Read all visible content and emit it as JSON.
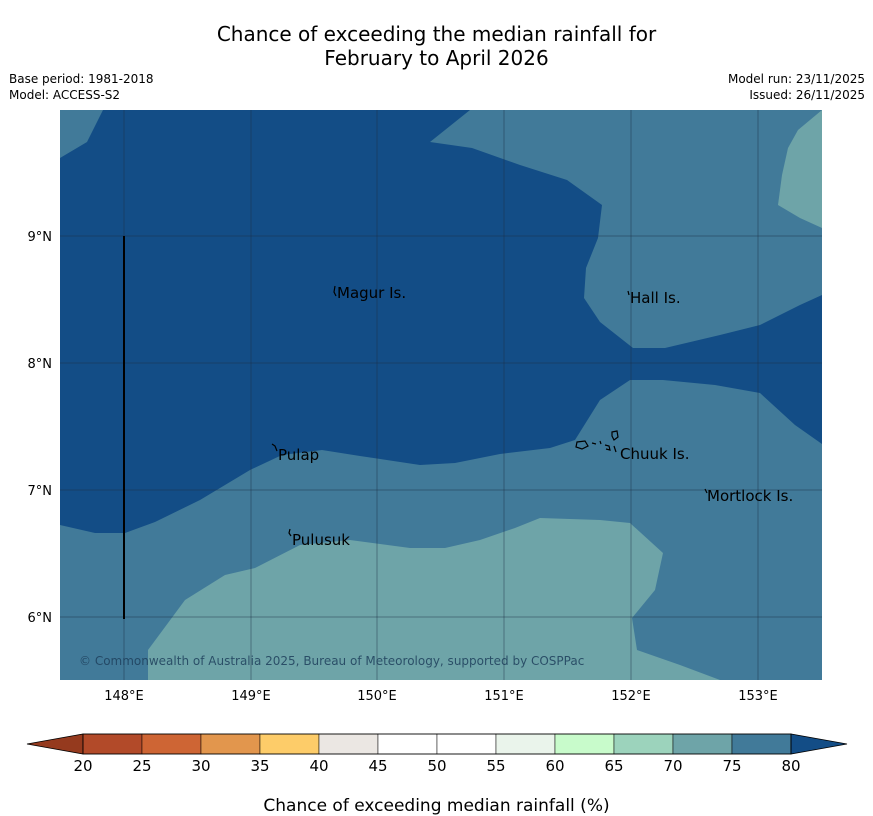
{
  "title": {
    "line1": "Chance of exceeding the median rainfall for",
    "line2": "February to April 2026"
  },
  "meta": {
    "base_period": "Base period: 1981-2018",
    "model": "Model: ACCESS-S2",
    "model_run": "Model run: 23/11/2025",
    "issued": "Issued: 26/11/2025"
  },
  "map": {
    "x_ticks": [
      "148°E",
      "149°E",
      "150°E",
      "151°E",
      "152°E",
      "153°E"
    ],
    "y_ticks": [
      "9°N",
      "8°N",
      "7°N",
      "6°N"
    ],
    "places": [
      "Magur Is.",
      "Hall Is.",
      "Pulap",
      "Chuuk Is.",
      "Mortlock Is.",
      "Pulusuk"
    ],
    "copyright": "© Commonwealth of Australia 2025, Bureau of Meteorology, supported by COSPPac",
    "colors": {
      "c80": "#134d86",
      "c75": "#417a99",
      "c70": "#6ea4a8"
    }
  },
  "colorbar": {
    "ticks": [
      "20",
      "25",
      "30",
      "35",
      "40",
      "45",
      "50",
      "55",
      "60",
      "65",
      "70",
      "75",
      "80"
    ],
    "colors": [
      "#b24a29",
      "#ce6534",
      "#e2964d",
      "#fdcc69",
      "#ebe7e3",
      "#ffffff",
      "#ffffff",
      "#eaf4eb",
      "#c8fbcb",
      "#9cd3bc",
      "#6ea4a8",
      "#417a99"
    ],
    "under_color": "#953a1e",
    "over_color": "#134d86",
    "label": "Chance of exceeding median rainfall (%)"
  }
}
